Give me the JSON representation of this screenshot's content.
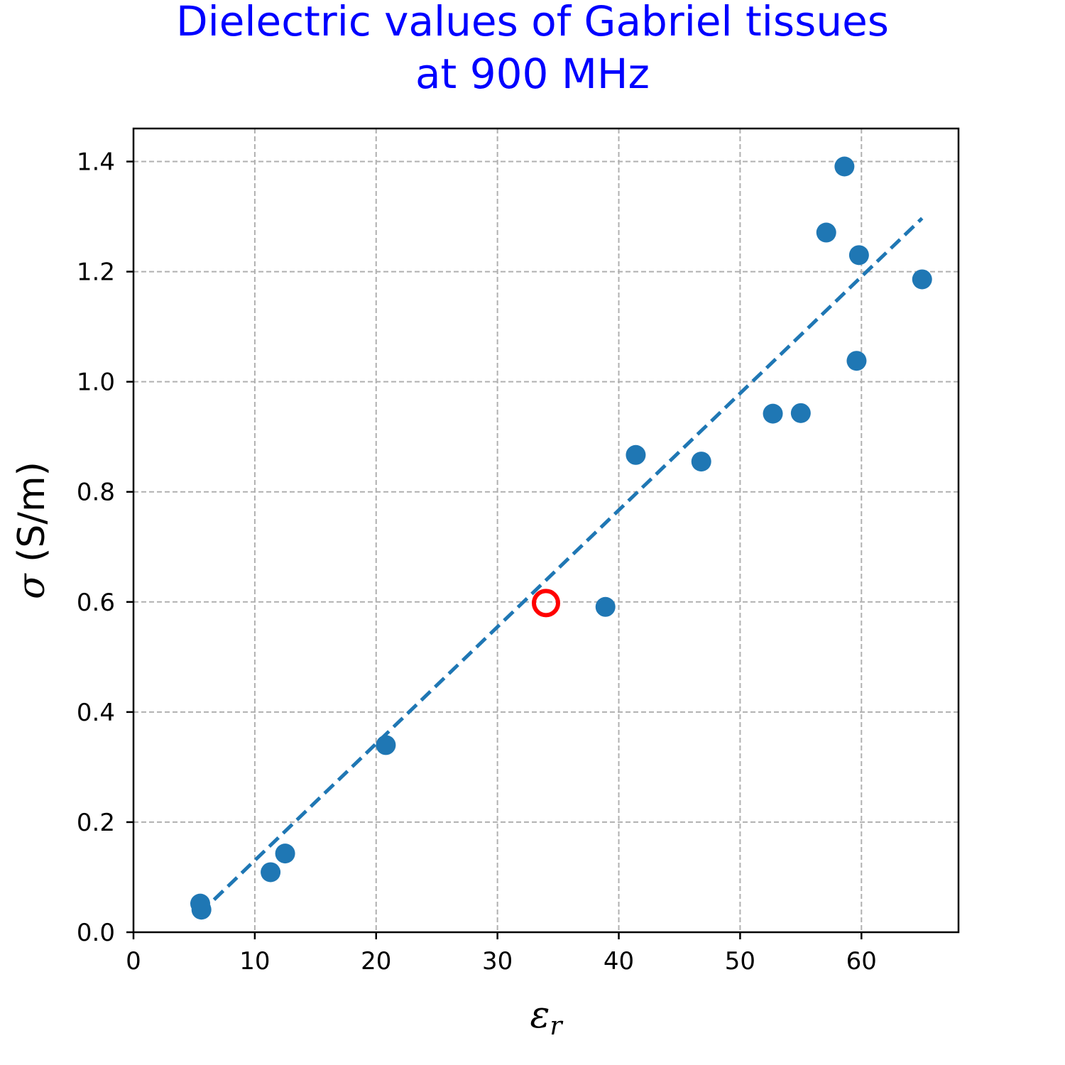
{
  "chart_data": {
    "type": "scatter",
    "title_lines": [
      "Dielectric values of Gabriel tissues",
      "at 900 MHz"
    ],
    "title_color": "#0000ff",
    "xlabel": {
      "symbol": "ε",
      "subscript": "r"
    },
    "ylabel": {
      "symbol": "σ",
      "unit": " (S/m)"
    },
    "xlim": [
      0,
      68
    ],
    "ylim": [
      0,
      1.46
    ],
    "xticks": [
      0,
      10,
      20,
      30,
      40,
      50,
      60
    ],
    "xtick_labels": [
      "0",
      "10",
      "20",
      "30",
      "40",
      "50",
      "60"
    ],
    "yticks": [
      0.0,
      0.2,
      0.4,
      0.6,
      0.8,
      1.0,
      1.2,
      1.4
    ],
    "ytick_labels": [
      "0.0",
      "0.2",
      "0.4",
      "0.6",
      "0.8",
      "1.0",
      "1.2",
      "1.4"
    ],
    "grid": true,
    "grid_color": "#b0b0b0",
    "series": [
      {
        "kind": "points",
        "color": "#1f77b4",
        "points": [
          {
            "x": 5.5,
            "y": 0.052
          },
          {
            "x": 5.6,
            "y": 0.041
          },
          {
            "x": 11.3,
            "y": 0.109
          },
          {
            "x": 12.5,
            "y": 0.143
          },
          {
            "x": 20.8,
            "y": 0.34
          },
          {
            "x": 38.9,
            "y": 0.591
          },
          {
            "x": 41.4,
            "y": 0.867
          },
          {
            "x": 46.8,
            "y": 0.855
          },
          {
            "x": 52.7,
            "y": 0.942
          },
          {
            "x": 55.0,
            "y": 0.943
          },
          {
            "x": 57.1,
            "y": 1.271
          },
          {
            "x": 58.6,
            "y": 1.391
          },
          {
            "x": 59.6,
            "y": 1.038
          },
          {
            "x": 59.8,
            "y": 1.23
          },
          {
            "x": 65.0,
            "y": 1.186
          }
        ]
      },
      {
        "kind": "fit-line",
        "color": "#1f77b4",
        "dashed": true,
        "points": [
          {
            "x": 5.5,
            "y": 0.035
          },
          {
            "x": 65.0,
            "y": 1.297
          }
        ]
      },
      {
        "kind": "highlight",
        "color": "#ff0000",
        "marker": "open-circle",
        "points": [
          {
            "x": 34.0,
            "y": 0.598
          }
        ]
      }
    ]
  }
}
